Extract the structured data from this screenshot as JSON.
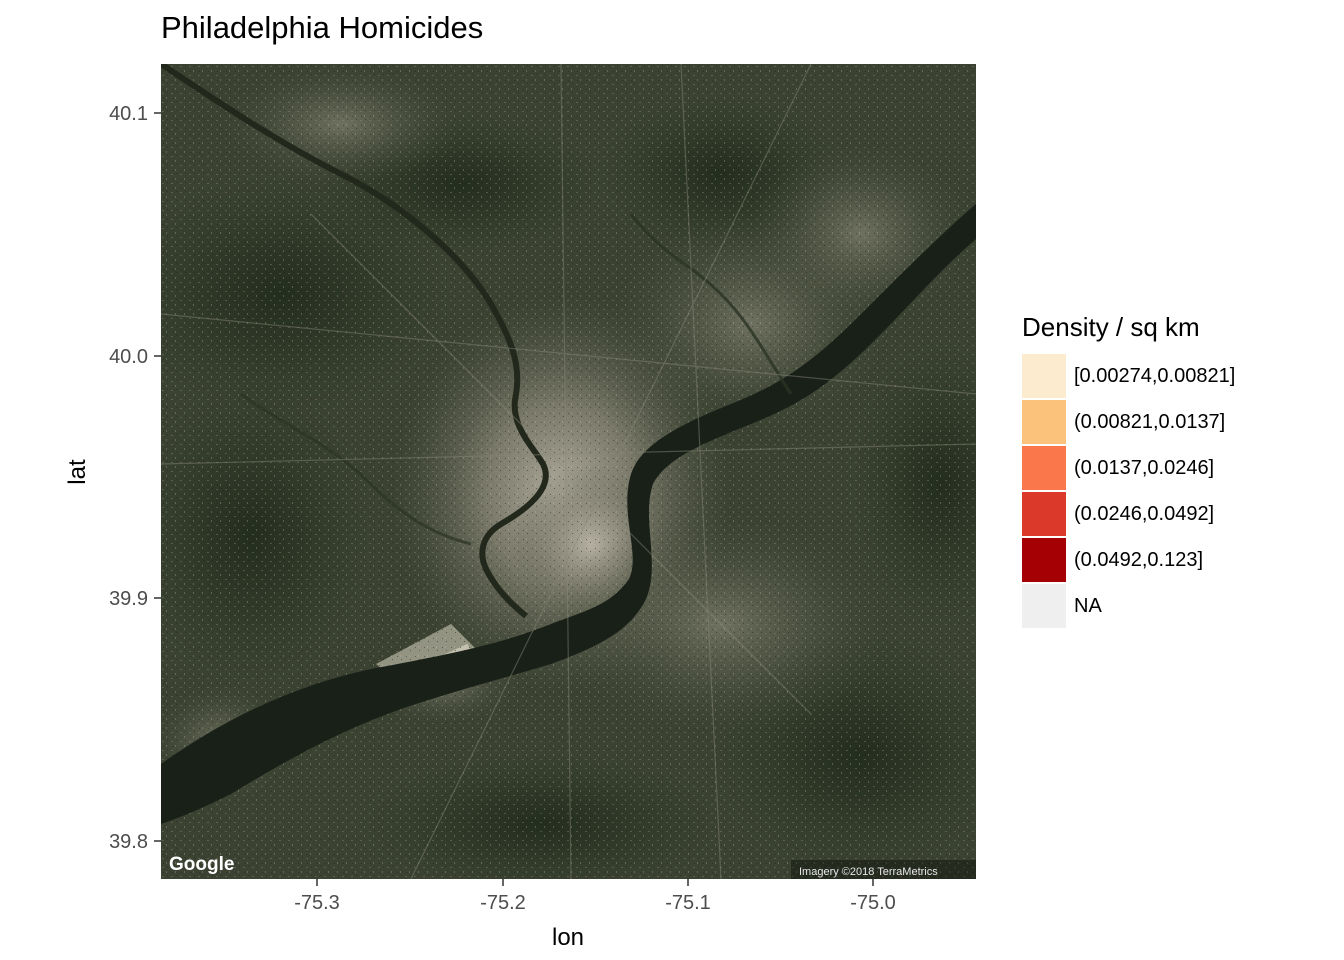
{
  "title": "Philadelphia Homicides",
  "map": {
    "basemap": "satellite imagery",
    "google_logo": "Google",
    "attribution": "Imagery ©2018 TerraMetrics",
    "x_axis": {
      "label": "lon",
      "ticks": [
        "-75.3",
        "-75.2",
        "-75.1",
        "-75.0"
      ]
    },
    "y_axis": {
      "label": "lat",
      "ticks": [
        "40.1",
        "40.0",
        "39.9",
        "39.8"
      ]
    }
  },
  "legend": {
    "title": "Density / sq km",
    "items": [
      {
        "label": "[0.00274,0.00821]",
        "color": "#fdebcf"
      },
      {
        "label": "(0.00821,0.0137]",
        "color": "#fbc27c"
      },
      {
        "label": "(0.0137,0.0246]",
        "color": "#f9774a"
      },
      {
        "label": "(0.0246,0.0492]",
        "color": "#db3929"
      },
      {
        "label": "(0.0492,0.123]",
        "color": "#a50104"
      },
      {
        "label": "NA",
        "color": "#efefef"
      }
    ]
  },
  "chart_data": {
    "type": "map",
    "title": "Philadelphia Homicides",
    "xlabel": "lon",
    "ylabel": "lat",
    "xticks": [
      -75.3,
      -75.2,
      -75.1,
      -75.0
    ],
    "yticks": [
      40.1,
      40.0,
      39.9,
      39.8
    ],
    "xlim": [
      -75.38,
      -74.94
    ],
    "ylim": [
      39.785,
      40.12
    ],
    "legend_title": "Density / sq km",
    "legend_placement": "right",
    "categories": [
      "[0.00274,0.00821]",
      "(0.00821,0.0137]",
      "(0.0137,0.0246]",
      "(0.0246,0.0492]",
      "(0.0492,0.123]",
      "NA"
    ]
  }
}
